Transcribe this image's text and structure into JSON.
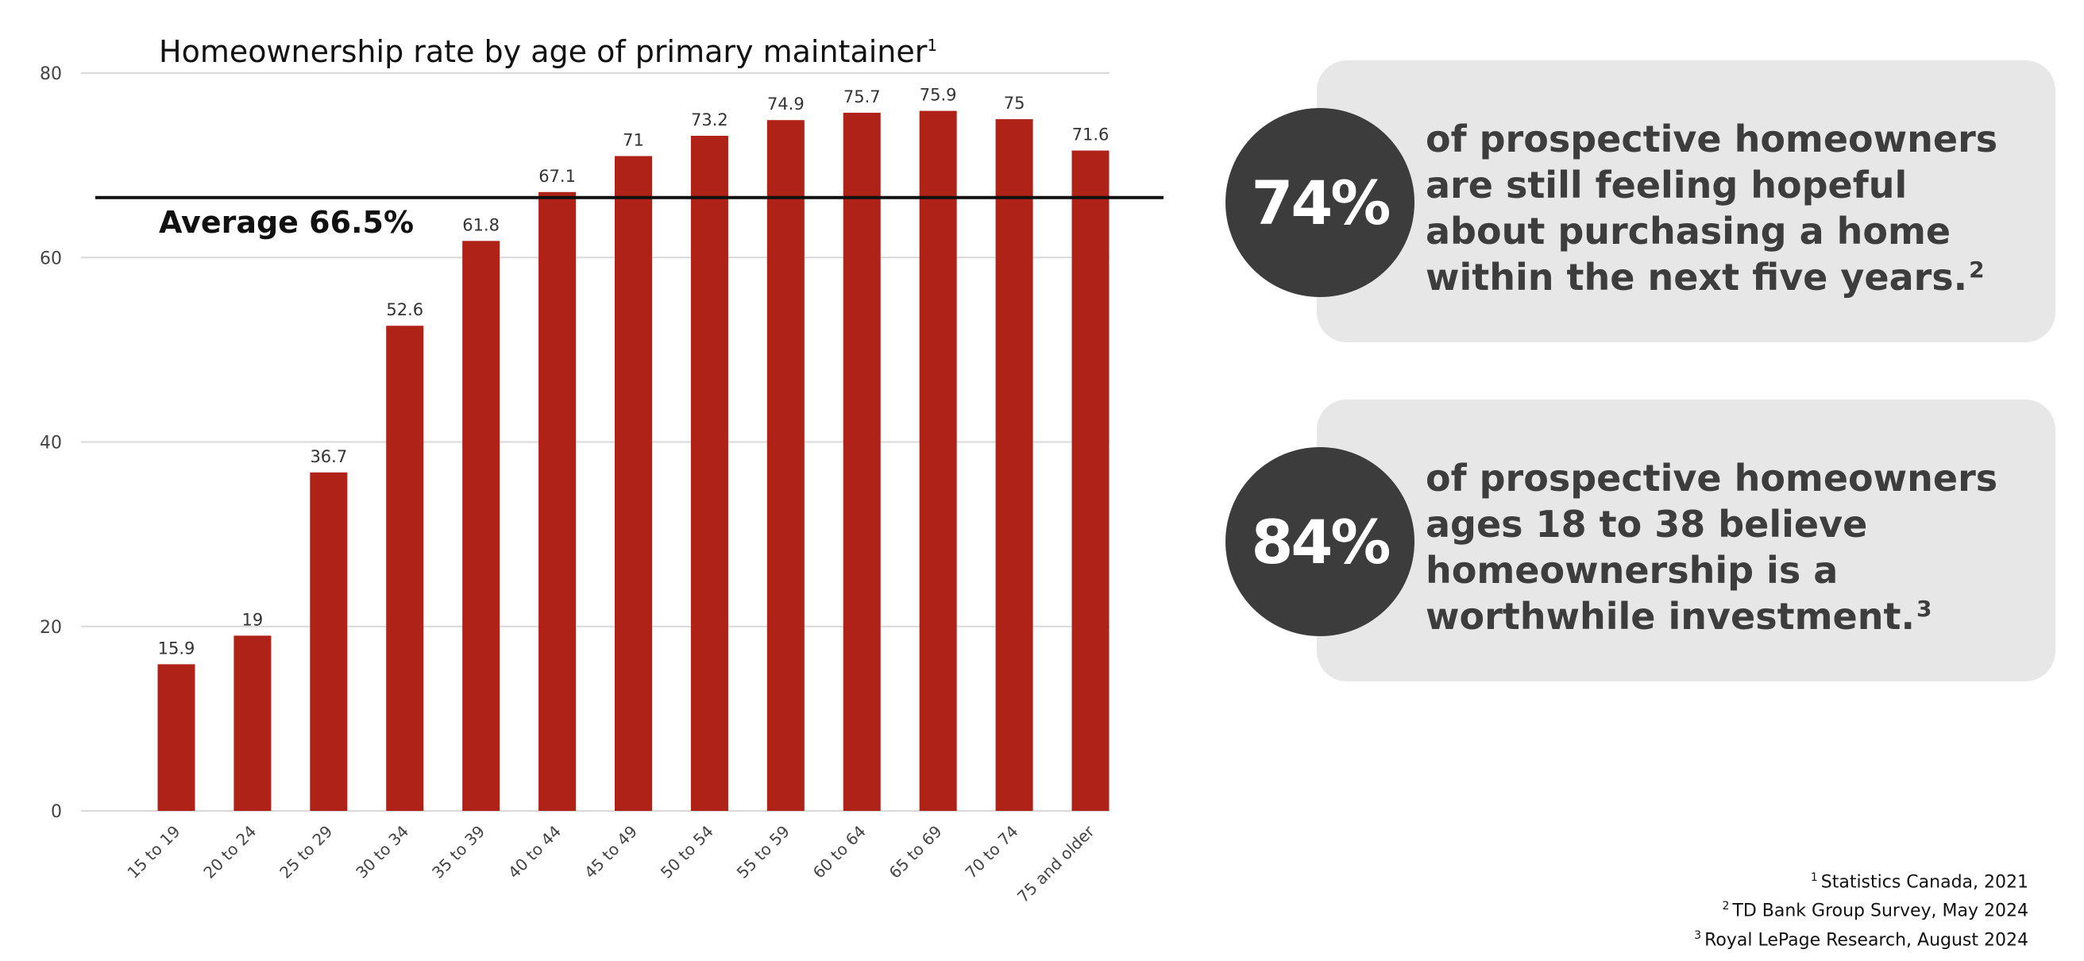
{
  "chart_data": {
    "type": "bar",
    "title": "Homeownership rate by age of primary maintainer",
    "title_footnote": "1",
    "categories": [
      "15 to 19",
      "20 to 24",
      "25 to 29",
      "30 to 34",
      "35 to 39",
      "40 to 44",
      "45 to 49",
      "50 to 54",
      "55 to 59",
      "60 to 64",
      "65 to 69",
      "70 to 74",
      "75 and older"
    ],
    "values": [
      15.9,
      19,
      36.7,
      52.6,
      61.8,
      67.1,
      71,
      73.2,
      74.9,
      75.7,
      75.9,
      75,
      71.6
    ],
    "value_labels": [
      "15.9",
      "19",
      "36.7",
      "52.6",
      "61.8",
      "67.1",
      "71",
      "73.2",
      "74.9",
      "75.7",
      "75.9",
      "75",
      "71.6"
    ],
    "ylim": [
      0,
      80
    ],
    "yticks": [
      0,
      20,
      40,
      60,
      80
    ],
    "grid": true,
    "bar_color": "#ae2218",
    "reference_line": {
      "value": 66.5,
      "label": "Average 66.5%"
    }
  },
  "stats": [
    {
      "value": "74%",
      "text_lines": [
        "of prospective homeowners",
        "are still feeling hopeful",
        "about purchasing a home",
        "within the next five years."
      ],
      "footnote": "2"
    },
    {
      "value": "84%",
      "text_lines": [
        "of prospective homeowners",
        "ages 18 to 38 believe",
        "homeownership is a",
        "worthwhile investment."
      ],
      "footnote": "3"
    }
  ],
  "footnotes": [
    {
      "num": "1",
      "text": "Statistics Canada, 2021"
    },
    {
      "num": "2",
      "text": "TD Bank Group Survey, May 2024"
    },
    {
      "num": "3",
      "text": "Royal LePage Research, August 2024"
    }
  ],
  "colors": {
    "card_bg": "#e7e7e7",
    "circle_bg": "#3c3c3c",
    "grid": "#d9d9d9"
  }
}
